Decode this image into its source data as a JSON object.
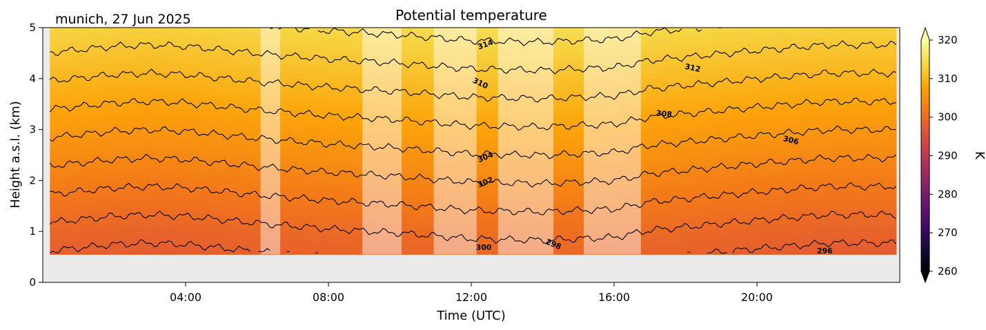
{
  "chart_data": {
    "type": "heatmap",
    "title": "Potential temperature",
    "subtitle": "munich, 27 Jun 2025",
    "xlabel": "Time (UTC)",
    "ylabel": "Height a.s.l. (km)",
    "xlim_hours": [
      0,
      24
    ],
    "ylim_km": [
      0,
      5
    ],
    "x_ticks": [
      {
        "hour": 4,
        "label": "04:00"
      },
      {
        "hour": 8,
        "label": "08:00"
      },
      {
        "hour": 12,
        "label": "12:00"
      },
      {
        "hour": 16,
        "label": "16:00"
      },
      {
        "hour": 20,
        "label": "20:00"
      }
    ],
    "y_ticks": [
      0,
      1,
      2,
      3,
      4,
      5
    ],
    "colorbar": {
      "label": "K",
      "colormap": "inferno",
      "range": [
        260,
        320
      ],
      "ticks": [
        260,
        270,
        280,
        290,
        300,
        310,
        320
      ],
      "extend": "both"
    },
    "data_bottom_km": 0.55,
    "missing_color": "#ebebeb",
    "contour_levels": [
      296,
      298,
      300,
      302,
      304,
      306,
      308,
      310,
      312,
      314,
      316
    ],
    "contour_labels": [
      {
        "text": "314",
        "hour": 12.4,
        "km": 4.66,
        "angle": -20
      },
      {
        "text": "310",
        "hour": 12.25,
        "km": 3.9,
        "angle": 25
      },
      {
        "text": "312",
        "hour": 18.2,
        "km": 4.2,
        "angle": 12
      },
      {
        "text": "308",
        "hour": 17.4,
        "km": 3.3,
        "angle": 5
      },
      {
        "text": "306",
        "hour": 20.95,
        "km": 2.78,
        "angle": 14
      },
      {
        "text": "304",
        "hour": 12.4,
        "km": 2.45,
        "angle": -22
      },
      {
        "text": "302",
        "hour": 12.4,
        "km": 1.96,
        "angle": -22
      },
      {
        "text": "300",
        "hour": 12.35,
        "km": 0.68,
        "angle": 0
      },
      {
        "text": "298",
        "hour": 14.3,
        "km": 0.74,
        "angle": 22
      },
      {
        "text": "296",
        "hour": 21.9,
        "km": 0.61,
        "angle": 0
      }
    ],
    "faded_periods_hours": [
      [
        6.1,
        6.65
      ],
      [
        8.95,
        10.05
      ],
      [
        10.95,
        12.15
      ],
      [
        12.75,
        14.3
      ],
      [
        15.15,
        16.75
      ]
    ],
    "theta_profile": {
      "surface_K": 298,
      "lapse_K_per_km": 3.6
    },
    "theta_surface_by_hour": [
      {
        "hour": 0.0,
        "surface": 297.8
      },
      {
        "hour": 2.0,
        "surface": 297.3
      },
      {
        "hour": 3.0,
        "surface": 297.2
      },
      {
        "hour": 4.0,
        "surface": 297.3
      },
      {
        "hour": 6.0,
        "surface": 297.8
      },
      {
        "hour": 8.0,
        "surface": 298.2
      },
      {
        "hour": 10.0,
        "surface": 298.5
      },
      {
        "hour": 12.0,
        "surface": 298.9
      },
      {
        "hour": 14.0,
        "surface": 299.0
      },
      {
        "hour": 16.0,
        "surface": 298.8
      },
      {
        "hour": 17.0,
        "surface": 298.3
      },
      {
        "hour": 20.0,
        "surface": 297.6
      },
      {
        "hour": 22.0,
        "surface": 297.2
      },
      {
        "hour": 24.0,
        "surface": 297.2
      }
    ]
  }
}
